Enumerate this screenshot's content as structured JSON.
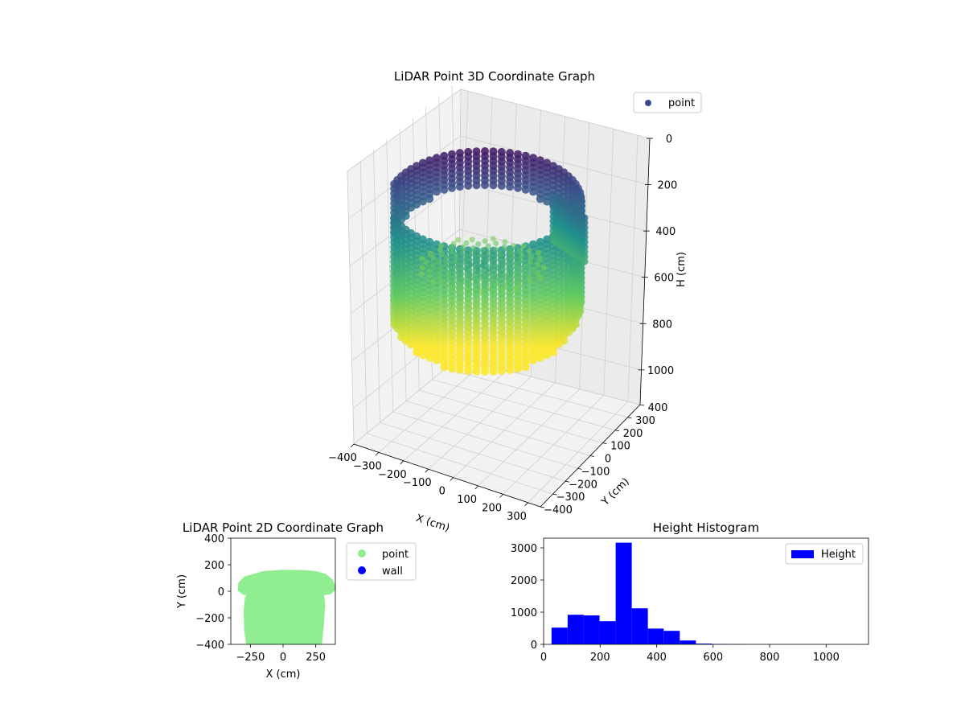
{
  "chart_data": [
    {
      "type": "scatter",
      "projection": "3d",
      "title": "LiDAR Point 3D Coordinate Graph",
      "xlabel": "X (cm)",
      "ylabel": "Y (cm)",
      "zlabel": "H (cm)",
      "x_ticks": [
        "−400",
        "−300",
        "−200",
        "−100",
        "0",
        "100",
        "200",
        "300"
      ],
      "y_ticks": [
        "−400",
        "−300",
        "−200",
        "−100",
        "0",
        "100",
        "200",
        "300",
        "400"
      ],
      "z_ticks": [
        "0",
        "200",
        "400",
        "600",
        "800",
        "1000"
      ],
      "xlim": [
        -400,
        350
      ],
      "ylim": [
        -400,
        400
      ],
      "zlim": [
        1150,
        0
      ],
      "grid": true,
      "legend": {
        "placement": "top-right",
        "entries": [
          {
            "label": "point",
            "color": "#3b4a8a"
          }
        ]
      },
      "colormap": "viridis",
      "colormap_stops": [
        "#440154",
        "#3b528b",
        "#21918c",
        "#5ec962",
        "#fde725"
      ]
    },
    {
      "type": "scatter",
      "title": "LiDAR Point 2D Coordinate Graph",
      "xlabel": "X (cm)",
      "ylabel": "Y (cm)",
      "x_ticks": [
        "−250",
        "0",
        "250"
      ],
      "y_ticks": [
        "−400",
        "−200",
        "0",
        "200",
        "400"
      ],
      "xlim": [
        -400,
        400
      ],
      "ylim": [
        -400,
        400
      ],
      "legend": {
        "placement": "outside-right",
        "entries": [
          {
            "label": "point",
            "color": "#90ee90"
          },
          {
            "label": "wall",
            "color": "#0000ff"
          }
        ]
      },
      "series": [
        {
          "name": "point",
          "color": "#90ee90",
          "outline": [
            [
              -290,
              100
            ],
            [
              -150,
              140
            ],
            [
              0,
              150
            ],
            [
              150,
              148
            ],
            [
              250,
              140
            ],
            [
              320,
              120
            ],
            [
              370,
              80
            ],
            [
              395,
              20
            ],
            [
              360,
              -10
            ],
            [
              300,
              -20
            ],
            [
              310,
              -100
            ],
            [
              300,
              -250
            ],
            [
              285,
              -400
            ],
            [
              -270,
              -400
            ],
            [
              -285,
              -300
            ],
            [
              -290,
              -150
            ],
            [
              -280,
              -50
            ],
            [
              -260,
              -20
            ],
            [
              -300,
              -15
            ],
            [
              -335,
              10
            ],
            [
              -330,
              60
            ]
          ]
        },
        {
          "name": "wall",
          "color": "#0000ff",
          "outline": []
        }
      ]
    },
    {
      "type": "bar",
      "kind": "histogram",
      "title": "Height Histogram",
      "x_ticks": [
        "0",
        "200",
        "400",
        "600",
        "800",
        "1000"
      ],
      "y_ticks": [
        "0",
        "1000",
        "2000",
        "3000"
      ],
      "xlim": [
        0,
        1150
      ],
      "ylim": [
        0,
        3300
      ],
      "color": "#0000ff",
      "legend": {
        "placement": "top-right",
        "entries": [
          {
            "label": "Height",
            "color": "#0000ff"
          }
        ]
      },
      "bins": [
        {
          "x0": 28,
          "x1": 85,
          "value": 520
        },
        {
          "x0": 85,
          "x1": 142,
          "value": 920
        },
        {
          "x0": 142,
          "x1": 198,
          "value": 900
        },
        {
          "x0": 198,
          "x1": 255,
          "value": 720
        },
        {
          "x0": 255,
          "x1": 312,
          "value": 3160
        },
        {
          "x0": 312,
          "x1": 369,
          "value": 1120
        },
        {
          "x0": 369,
          "x1": 425,
          "value": 490
        },
        {
          "x0": 425,
          "x1": 482,
          "value": 420
        },
        {
          "x0": 482,
          "x1": 539,
          "value": 120
        },
        {
          "x0": 539,
          "x1": 596,
          "value": 25
        },
        {
          "x0": 596,
          "x1": 653,
          "value": 10
        },
        {
          "x0": 653,
          "x1": 710,
          "value": 5
        },
        {
          "x0": 710,
          "x1": 767,
          "value": 3
        },
        {
          "x0": 767,
          "x1": 824,
          "value": 2
        },
        {
          "x0": 824,
          "x1": 881,
          "value": 1
        },
        {
          "x0": 881,
          "x1": 938,
          "value": 1
        },
        {
          "x0": 938,
          "x1": 995,
          "value": 1
        },
        {
          "x0": 995,
          "x1": 1052,
          "value": 1
        },
        {
          "x0": 1052,
          "x1": 1110,
          "value": 1
        }
      ]
    }
  ]
}
